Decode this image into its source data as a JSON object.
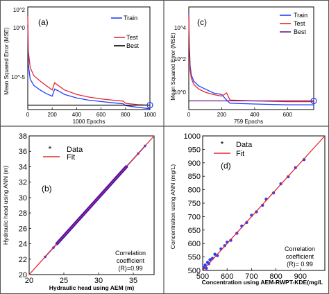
{
  "chart_data": [
    {
      "panel": "(a)",
      "type": "line",
      "ylabel": "Mean Squared Error  (MSE)",
      "xlabel": "1000 Epochs",
      "x_ticks": [
        "0",
        "200",
        "400",
        "600",
        "800",
        "1000"
      ],
      "y_ticks": [
        "10^2",
        "10^0",
        "10^-5"
      ],
      "y_scale": "log",
      "xlim": [
        0,
        1000
      ],
      "ylim_log10": [
        -9,
        2.5
      ],
      "legend": [
        "Train",
        "Test",
        "Best"
      ],
      "colors": {
        "Train": "#1f3fff",
        "Test": "#e8262a",
        "Best": "#000000"
      },
      "series": [
        {
          "name": "Train",
          "x": [
            0,
            5,
            20,
            50,
            100,
            150,
            200,
            220,
            250,
            300,
            400,
            500,
            600,
            700,
            780,
            800,
            900,
            1000
          ],
          "log10_y": [
            0.5,
            -4,
            -5.6,
            -6.3,
            -6.8,
            -7.2,
            -7.5,
            -6.7,
            -6.9,
            -7.3,
            -7.7,
            -7.95,
            -8.1,
            -8.25,
            -8.35,
            -8.55,
            -8.75,
            -8.9
          ]
        },
        {
          "name": "Test",
          "x": [
            0,
            5,
            20,
            50,
            100,
            150,
            200,
            220,
            250,
            300,
            400,
            500,
            600,
            700,
            780,
            800,
            900,
            1000
          ],
          "log10_y": [
            1.5,
            -2.5,
            -4.3,
            -5.2,
            -5.8,
            -6.3,
            -6.8,
            -6.0,
            -6.3,
            -6.8,
            -7.3,
            -7.6,
            -7.8,
            -7.95,
            -8.05,
            -8.3,
            -8.45,
            -8.5
          ]
        },
        {
          "name": "Best",
          "x": [
            0,
            1000
          ],
          "log10_y": [
            -8.5,
            -8.5
          ]
        }
      ],
      "best_point": {
        "x": 1000,
        "log10_y": -8.5
      }
    },
    {
      "panel": "(c)",
      "type": "line",
      "ylabel": "Mean Squared Error  (MSE)",
      "xlabel": "759 Epochs",
      "x_ticks": [
        "0",
        "200",
        "400",
        "600"
      ],
      "y_ticks": [
        "10^4",
        "10^2",
        "10^0"
      ],
      "y_scale": "log",
      "xlim": [
        0,
        759
      ],
      "ylim_log10": [
        -1.5,
        5
      ],
      "legend": [
        "Train",
        "Test",
        "Best"
      ],
      "colors": {
        "Train": "#1f3fff",
        "Test": "#e8262a",
        "Best": "#6a1b8a"
      },
      "series": [
        {
          "name": "Train",
          "x": [
            0,
            3,
            8,
            15,
            30,
            60,
            100,
            150,
            200,
            230,
            250,
            400,
            600,
            759
          ],
          "log10_y": [
            4.6,
            2.8,
            1.3,
            0.7,
            0.3,
            0.0,
            -0.2,
            -0.45,
            -0.55,
            -0.9,
            -1.1,
            -1.15,
            -1.2,
            -1.2
          ]
        },
        {
          "name": "Test",
          "x": [
            0,
            3,
            8,
            15,
            30,
            60,
            100,
            150,
            200,
            230,
            250,
            400,
            600,
            759
          ],
          "log10_y": [
            4.4,
            2.5,
            1.0,
            0.5,
            0.1,
            -0.2,
            -0.4,
            -0.55,
            -0.65,
            -0.45,
            -0.9,
            -0.95,
            -1.0,
            -1.0
          ]
        },
        {
          "name": "Best",
          "x": [
            0,
            759
          ],
          "log10_y": [
            -0.95,
            -0.95
          ]
        }
      ],
      "best_point": {
        "x": 759,
        "log10_y": -0.95
      }
    },
    {
      "panel": "(b)",
      "type": "scatter",
      "ylabel": "Hydraulic head using ANN (m)",
      "xlabel": "Hydraulic head using AEM (m)",
      "xlim": [
        20,
        38
      ],
      "ylim": [
        20,
        38
      ],
      "x_ticks": [
        "20",
        "25",
        "30",
        "35"
      ],
      "y_ticks": [
        "20",
        "22",
        "24",
        "26",
        "28",
        "30",
        "32",
        "34",
        "36",
        "38"
      ],
      "legend": [
        "Data",
        "Fit"
      ],
      "colors": {
        "Data": "#1f3fff",
        "Fit": "#e8262a"
      },
      "annotation": [
        "Correlation",
        "coefficient",
        "(R)=0.99"
      ],
      "series": [
        {
          "name": "Data",
          "range": [
            22.3,
            36.7
          ],
          "dense_range": [
            24,
            34
          ]
        },
        {
          "name": "Fit",
          "x": [
            20,
            38
          ],
          "y": [
            20,
            38
          ]
        }
      ]
    },
    {
      "panel": "(d)",
      "type": "scatter",
      "ylabel": "Concentration using ANN (mg/L)",
      "xlabel": "Concentration using AEM-RWPT-KDE(mg/L",
      "xlim": [
        500,
        1000
      ],
      "ylim": [
        500,
        1000
      ],
      "x_ticks": [
        "500",
        "600",
        "700",
        "800",
        "900"
      ],
      "y_ticks": [
        "500",
        "550",
        "600",
        "650",
        "700",
        "750",
        "800",
        "850",
        "900",
        "950",
        "1000"
      ],
      "legend": [
        "Data",
        "Fit"
      ],
      "colors": {
        "Data": "#1f3fff",
        "Fit": "#e8262a"
      },
      "annotation": [
        "Correlation",
        "coefficient",
        "(R)= 0.99"
      ],
      "series": [
        {
          "name": "Data",
          "x": [
            505,
            510,
            515,
            520,
            525,
            530,
            540,
            550,
            560,
            575,
            590,
            600,
            615,
            640,
            660,
            680,
            700,
            720,
            745,
            760,
            790,
            820,
            850,
            880,
            915
          ],
          "y": [
            510,
            520,
            508,
            530,
            525,
            540,
            545,
            560,
            555,
            580,
            592,
            605,
            612,
            638,
            665,
            678,
            705,
            718,
            742,
            765,
            788,
            822,
            848,
            882,
            912
          ]
        },
        {
          "name": "Fit",
          "x": [
            500,
            1000
          ],
          "y": [
            500,
            1000
          ]
        }
      ]
    }
  ]
}
